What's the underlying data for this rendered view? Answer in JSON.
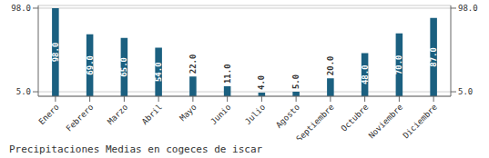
{
  "chart_data": {
    "type": "bar",
    "title": "Precipitaciones Medias en cogeces de iscar",
    "categories": [
      "Enero",
      "Febrero",
      "Marzo",
      "Abril",
      "Mayo",
      "Junio",
      "Julio",
      "Agosto",
      "Septiembre",
      "Octubre",
      "Noviembre",
      "Diciembre"
    ],
    "values": [
      98.0,
      69.0,
      65.0,
      54.0,
      22.0,
      11.0,
      4.0,
      5.0,
      20.0,
      48.0,
      70.0,
      87.0
    ],
    "value_labels": [
      "98.0",
      "69.0",
      "65.0",
      "54.0",
      "22.0",
      "11.0",
      "4.0",
      "5.0",
      "20.0",
      "48.0",
      "70.0",
      "87.0"
    ],
    "data_labels": true,
    "color": "#1b6080",
    "ylim": [
      0,
      101
    ],
    "yticks": [
      {
        "value": 5,
        "label": "5.0"
      },
      {
        "value": 98,
        "label": "98.0"
      }
    ],
    "y2lim": [
      0,
      101
    ],
    "y2ticks": [
      {
        "value": 5,
        "label": "5.0"
      },
      {
        "value": 98,
        "label": "98.0"
      }
    ],
    "grid": true
  }
}
